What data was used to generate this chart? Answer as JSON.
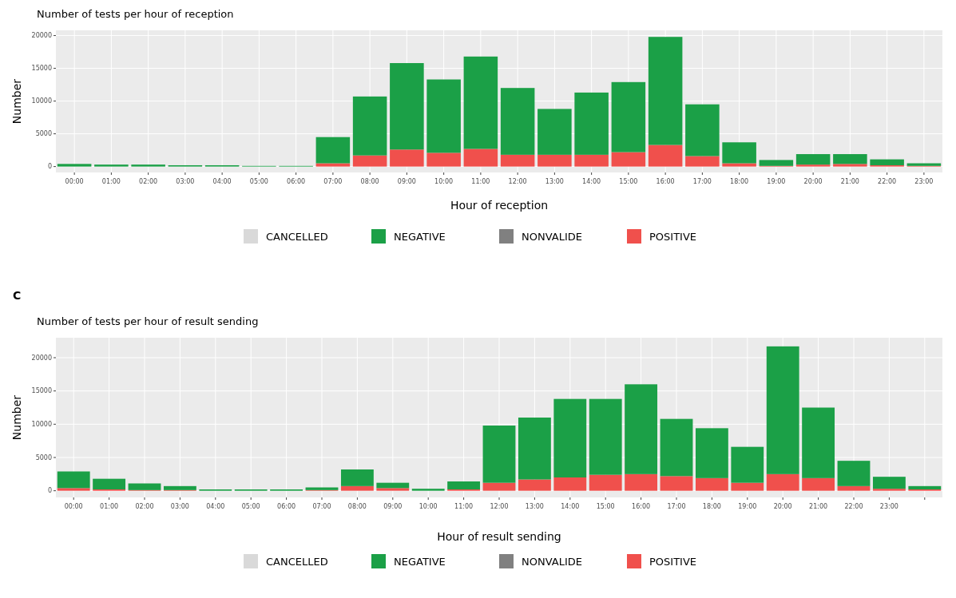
{
  "chart_data": [
    {
      "type": "bar",
      "stacked": true,
      "title": "Number of tests per hour of reception",
      "xlabel": "Hour of reception",
      "ylabel": "Number",
      "categories": [
        "00:00",
        "01:00",
        "02:00",
        "03:00",
        "04:00",
        "05:00",
        "06:00",
        "07:00",
        "08:00",
        "09:00",
        "10:00",
        "11:00",
        "12:00",
        "13:00",
        "14:00",
        "15:00",
        "16:00",
        "17:00",
        "18:00",
        "19:00",
        "20:00",
        "21:00",
        "22:00",
        "23:00"
      ],
      "ylim": [
        -900,
        20800
      ],
      "yticks": [
        0,
        5000,
        10000,
        15000,
        20000
      ],
      "grid": true,
      "legend": "bottom",
      "series": [
        {
          "name": "POSITIVE",
          "color": "#f0504c",
          "values": [
            0,
            0,
            0,
            0,
            0,
            0,
            0,
            500,
            1700,
            2600,
            2100,
            2700,
            1800,
            1800,
            1800,
            2200,
            3300,
            1600,
            500,
            100,
            300,
            400,
            200,
            100
          ]
        },
        {
          "name": "NONVALIDE",
          "color": "#808080",
          "values": [
            0,
            0,
            0,
            0,
            0,
            0,
            0,
            0,
            0,
            0,
            0,
            0,
            0,
            0,
            0,
            0,
            0,
            0,
            0,
            0,
            0,
            0,
            0,
            0
          ]
        },
        {
          "name": "NEGATIVE",
          "color": "#1ba047",
          "values": [
            400,
            300,
            300,
            200,
            200,
            100,
            100,
            4000,
            9000,
            13200,
            11200,
            14100,
            10200,
            7000,
            9500,
            10700,
            16500,
            7900,
            3200,
            900,
            1600,
            1500,
            900,
            400
          ]
        },
        {
          "name": "CANCELLED",
          "color": "#d9d9d9",
          "values": [
            0,
            0,
            0,
            0,
            0,
            0,
            0,
            0,
            0,
            0,
            0,
            0,
            0,
            0,
            0,
            0,
            0,
            0,
            0,
            0,
            0,
            0,
            0,
            0
          ]
        }
      ]
    },
    {
      "type": "bar",
      "stacked": true,
      "title": "Number of tests per hour of result sending",
      "xlabel": "Hour of result sending",
      "ylabel": "Number",
      "annotations": [
        "C"
      ],
      "categories": [
        "00:00",
        "01:00",
        "02:00",
        "03:00",
        "04:00",
        "05:00",
        "06:00",
        "07:00",
        "08:00",
        "09:00",
        "10:00",
        "11:00",
        "12:00",
        "13:00",
        "14:00",
        "15:00",
        "16:00",
        "17:00",
        "18:00",
        "19:00",
        "20:00",
        "21:00",
        "22:00",
        "23:00",
        null
      ],
      "ylim": [
        -1000,
        23000
      ],
      "yticks": [
        0,
        5000,
        10000,
        15000,
        20000
      ],
      "grid": true,
      "legend": "bottom",
      "series": [
        {
          "name": "POSITIVE",
          "color": "#f0504c",
          "values": [
            400,
            200,
            100,
            100,
            0,
            0,
            0,
            100,
            700,
            400,
            0,
            200,
            1200,
            1700,
            2000,
            2400,
            2500,
            2200,
            1900,
            1200,
            2500,
            1900,
            700,
            300,
            200
          ]
        },
        {
          "name": "NONVALIDE",
          "color": "#808080",
          "values": [
            0,
            0,
            0,
            0,
            0,
            0,
            0,
            0,
            0,
            0,
            0,
            0,
            0,
            0,
            0,
            0,
            0,
            0,
            0,
            0,
            0,
            0,
            0,
            0,
            0
          ]
        },
        {
          "name": "NEGATIVE",
          "color": "#1ba047",
          "values": [
            2500,
            1600,
            1000,
            600,
            200,
            200,
            200,
            400,
            2500,
            800,
            300,
            1200,
            8600,
            9300,
            11800,
            11400,
            13500,
            8600,
            7500,
            5400,
            19200,
            10600,
            3800,
            1800,
            500
          ]
        },
        {
          "name": "CANCELLED",
          "color": "#d9d9d9",
          "values": [
            0,
            0,
            0,
            0,
            0,
            0,
            0,
            0,
            0,
            0,
            0,
            0,
            0,
            0,
            0,
            0,
            0,
            0,
            0,
            0,
            0,
            0,
            0,
            0,
            0
          ]
        }
      ]
    }
  ]
}
